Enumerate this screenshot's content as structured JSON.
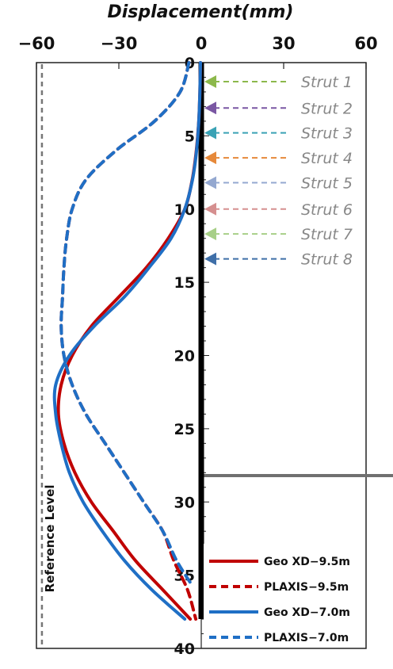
{
  "chart_data": {
    "type": "line",
    "title": "Displacement(mm)",
    "xlabel": "",
    "ylabel": "",
    "xlim": [
      -60,
      60
    ],
    "ylim": [
      0,
      40
    ],
    "y_inverted": true,
    "x_axis_position": "top",
    "x_ticks": [
      -60,
      -30,
      0,
      30,
      60
    ],
    "x_tick_labels": [
      "−60",
      "−30",
      "0",
      "30",
      "60"
    ],
    "y_ticks": [
      0,
      5,
      10,
      15,
      20,
      25,
      30,
      35,
      40
    ],
    "y_tick_labels": [
      "0",
      "5",
      "10",
      "15",
      "20",
      "25",
      "30",
      "35",
      "40"
    ],
    "grid": false,
    "legend_position": "bottom-right",
    "series": [
      {
        "name": "Geo XD−9.5m",
        "style": "solid",
        "color": "#c00000",
        "points": [
          [
            -0.3,
            0
          ],
          [
            -0.5,
            2
          ],
          [
            -0.9,
            4
          ],
          [
            -1.8,
            6
          ],
          [
            -3.3,
            8
          ],
          [
            -6,
            10
          ],
          [
            -12,
            12
          ],
          [
            -20,
            14
          ],
          [
            -30,
            16
          ],
          [
            -40,
            18
          ],
          [
            -47,
            20
          ],
          [
            -51,
            22
          ],
          [
            -52,
            24
          ],
          [
            -50,
            26
          ],
          [
            -46,
            28
          ],
          [
            -40,
            30
          ],
          [
            -32,
            32
          ],
          [
            -24,
            34
          ],
          [
            -14,
            36
          ],
          [
            -4,
            38
          ]
        ]
      },
      {
        "name": "PLAXIS−9.5m",
        "style": "dashed",
        "color": "#c00000",
        "points": [
          [
            -4.5,
            0
          ],
          [
            -7.7,
            2
          ],
          [
            -17,
            4
          ],
          [
            -31,
            6
          ],
          [
            -42,
            8
          ],
          [
            -47,
            10
          ],
          [
            -49,
            12
          ],
          [
            -50,
            14
          ],
          [
            -50.5,
            16
          ],
          [
            -51,
            18
          ],
          [
            -50,
            20
          ],
          [
            -47,
            22
          ],
          [
            -42,
            24
          ],
          [
            -35,
            26
          ],
          [
            -28,
            28
          ],
          [
            -21,
            30
          ],
          [
            -14,
            32
          ],
          [
            -10,
            34
          ],
          [
            -5,
            36
          ],
          [
            -2,
            38
          ]
        ]
      },
      {
        "name": "Geo XD−7.0m",
        "style": "solid",
        "color": "#1f6fc5",
        "points": [
          [
            -0.3,
            0
          ],
          [
            -0.5,
            2
          ],
          [
            -0.9,
            4
          ],
          [
            -1.7,
            6
          ],
          [
            -3.2,
            8
          ],
          [
            -6,
            10
          ],
          [
            -11,
            12
          ],
          [
            -19,
            14
          ],
          [
            -28,
            16
          ],
          [
            -39,
            18
          ],
          [
            -48,
            20
          ],
          [
            -53,
            22
          ],
          [
            -53,
            24
          ],
          [
            -51,
            26
          ],
          [
            -48,
            28
          ],
          [
            -43,
            30
          ],
          [
            -36,
            32
          ],
          [
            -28,
            34
          ],
          [
            -18,
            36
          ],
          [
            -6,
            38
          ]
        ]
      },
      {
        "name": "PLAXIS−7.0m",
        "style": "dashed",
        "color": "#1f6fc5",
        "points": [
          [
            -4.5,
            0
          ],
          [
            -7.7,
            2
          ],
          [
            -17,
            4
          ],
          [
            -31,
            6
          ],
          [
            -42,
            8
          ],
          [
            -47,
            10
          ],
          [
            -49,
            12
          ],
          [
            -50,
            14
          ],
          [
            -50.5,
            16
          ],
          [
            -51,
            18
          ],
          [
            -50,
            20
          ],
          [
            -47,
            22
          ],
          [
            -42,
            24
          ],
          [
            -35,
            26
          ],
          [
            -28,
            28
          ],
          [
            -21,
            30
          ],
          [
            -14,
            32
          ],
          [
            -9,
            34
          ],
          [
            -4,
            35.5
          ]
        ]
      }
    ],
    "struts": [
      {
        "label": "Strut 1",
        "depth": 1.3,
        "color": "#8cb84b"
      },
      {
        "label": "Strut 2",
        "depth": 3.1,
        "color": "#7a57a3"
      },
      {
        "label": "Strut 3",
        "depth": 4.8,
        "color": "#3aa2b5"
      },
      {
        "label": "Strut 4",
        "depth": 6.5,
        "color": "#e6893a"
      },
      {
        "label": "Strut 5",
        "depth": 8.2,
        "color": "#94a8d0"
      },
      {
        "label": "Strut 6",
        "depth": 10.0,
        "color": "#d58f8f"
      },
      {
        "label": "Strut 7",
        "depth": 11.7,
        "color": "#a7cf87"
      },
      {
        "label": "Strut 8",
        "depth": 13.4,
        "color": "#3f6fa8"
      }
    ],
    "wall": {
      "top": 0,
      "bottom": 38,
      "x": 0
    },
    "excavation_level": 28.2,
    "reference_line_x": -58,
    "annotation": "Reference Level"
  }
}
